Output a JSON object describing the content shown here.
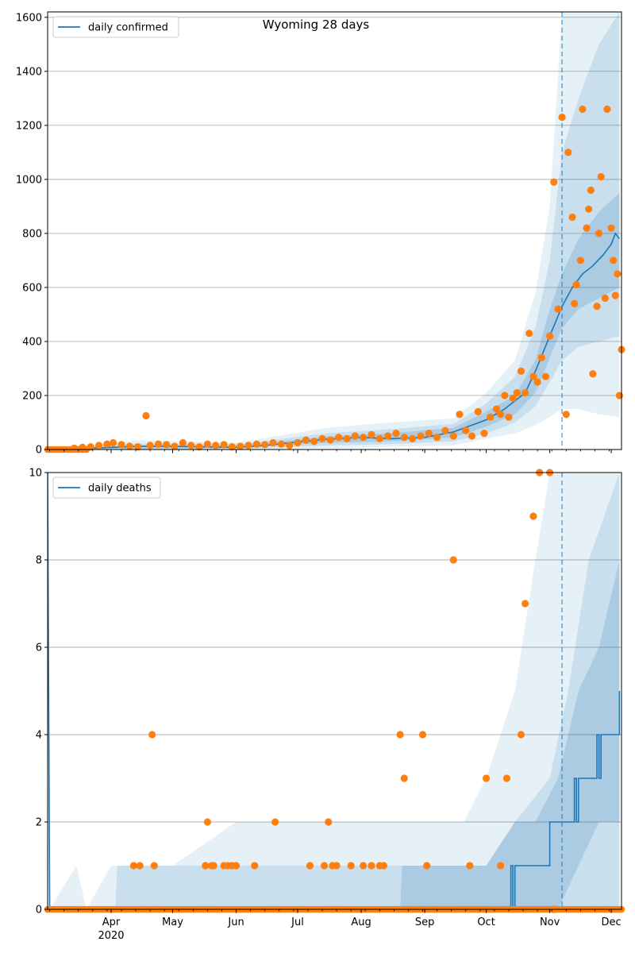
{
  "title": "Wyoming 28 days",
  "colors": {
    "line": "#1f77b4",
    "band": "#1f77b4",
    "points": "#ff7f0e",
    "grid": "#b0b0b0"
  },
  "chart_data": [
    {
      "type": "line",
      "title": "Wyoming 28 days",
      "legend": {
        "label": "daily confirmed",
        "placement": "top-left"
      },
      "ylim": [
        0,
        1620
      ],
      "yticks": [
        0,
        200,
        400,
        600,
        800,
        1000,
        1200,
        1400,
        1600
      ],
      "grid": "y",
      "forecast_start": "2020-11-07",
      "line": {
        "name": "daily confirmed",
        "x": [
          "2020-03-01",
          "2020-03-15",
          "2020-04-01",
          "2020-04-15",
          "2020-05-01",
          "2020-05-15",
          "2020-06-01",
          "2020-06-15",
          "2020-07-01",
          "2020-07-15",
          "2020-08-01",
          "2020-08-15",
          "2020-09-01",
          "2020-09-15",
          "2020-10-01",
          "2020-10-10",
          "2020-10-20",
          "2020-10-25",
          "2020-11-01",
          "2020-11-07",
          "2020-11-12",
          "2020-11-17",
          "2020-11-22",
          "2020-11-27",
          "2020-12-01",
          "2020-12-03",
          "2020-12-05"
        ],
        "y": [
          0,
          3,
          8,
          12,
          12,
          10,
          8,
          15,
          28,
          38,
          45,
          40,
          45,
          65,
          110,
          150,
          210,
          290,
          420,
          530,
          600,
          650,
          680,
          720,
          760,
          800,
          780
        ]
      },
      "bands": [
        {
          "x": [
            "2020-03-01",
            "2020-04-15",
            "2020-06-01",
            "2020-07-15",
            "2020-08-15",
            "2020-09-15",
            "2020-10-01",
            "2020-10-15",
            "2020-10-25",
            "2020-11-01",
            "2020-11-07",
            "2020-11-15",
            "2020-11-25",
            "2020-12-05"
          ],
          "lower": [
            0,
            0,
            0,
            5,
            10,
            15,
            40,
            60,
            90,
            120,
            150,
            150,
            130,
            120
          ],
          "upper": [
            0,
            35,
            25,
            80,
            100,
            115,
            210,
            330,
            580,
            900,
            1650,
            1650,
            1650,
            1650
          ]
        },
        {
          "x": [
            "2020-03-01",
            "2020-04-15",
            "2020-06-01",
            "2020-07-15",
            "2020-08-15",
            "2020-09-15",
            "2020-10-01",
            "2020-10-15",
            "2020-10-25",
            "2020-11-01",
            "2020-11-07",
            "2020-11-15",
            "2020-11-25",
            "2020-12-05"
          ],
          "lower": [
            0,
            0,
            2,
            15,
            20,
            30,
            60,
            100,
            160,
            250,
            330,
            380,
            400,
            420
          ],
          "upper": [
            0,
            22,
            18,
            60,
            75,
            95,
            170,
            270,
            450,
            700,
            1100,
            1300,
            1500,
            1650
          ]
        },
        {
          "x": [
            "2020-03-01",
            "2020-04-15",
            "2020-06-01",
            "2020-07-15",
            "2020-08-15",
            "2020-09-15",
            "2020-10-01",
            "2020-10-15",
            "2020-10-25",
            "2020-11-01",
            "2020-11-07",
            "2020-11-15",
            "2020-11-25",
            "2020-12-05"
          ],
          "lower": [
            0,
            4,
            5,
            25,
            30,
            45,
            85,
            130,
            210,
            340,
            450,
            520,
            560,
            600
          ],
          "upper": [
            0,
            16,
            12,
            48,
            60,
            80,
            140,
            200,
            330,
            520,
            650,
            780,
            880,
            950
          ]
        }
      ],
      "points": {
        "name": "observed",
        "x": [
          "2020-03-14",
          "2020-03-18",
          "2020-03-22",
          "2020-03-26",
          "2020-03-30",
          "2020-04-02",
          "2020-04-06",
          "2020-04-10",
          "2020-04-14",
          "2020-04-18",
          "2020-04-20",
          "2020-04-24",
          "2020-04-28",
          "2020-05-02",
          "2020-05-06",
          "2020-05-10",
          "2020-05-14",
          "2020-05-18",
          "2020-05-22",
          "2020-05-26",
          "2020-05-30",
          "2020-06-03",
          "2020-06-07",
          "2020-06-11",
          "2020-06-15",
          "2020-06-19",
          "2020-06-23",
          "2020-06-27",
          "2020-07-01",
          "2020-07-05",
          "2020-07-09",
          "2020-07-13",
          "2020-07-17",
          "2020-07-21",
          "2020-07-25",
          "2020-07-29",
          "2020-08-02",
          "2020-08-06",
          "2020-08-10",
          "2020-08-14",
          "2020-08-18",
          "2020-08-22",
          "2020-08-26",
          "2020-08-30",
          "2020-09-03",
          "2020-09-07",
          "2020-09-11",
          "2020-09-15",
          "2020-09-18",
          "2020-09-21",
          "2020-09-24",
          "2020-09-27",
          "2020-09-30",
          "2020-10-03",
          "2020-10-06",
          "2020-10-08",
          "2020-10-10",
          "2020-10-12",
          "2020-10-14",
          "2020-10-16",
          "2020-10-18",
          "2020-10-20",
          "2020-10-22",
          "2020-10-24",
          "2020-10-26",
          "2020-10-28",
          "2020-10-30",
          "2020-11-01",
          "2020-11-03",
          "2020-11-05",
          "2020-11-07",
          "2020-11-09",
          "2020-11-10",
          "2020-11-12",
          "2020-11-13",
          "2020-11-14",
          "2020-11-16",
          "2020-11-17",
          "2020-11-19",
          "2020-11-20",
          "2020-11-21",
          "2020-11-22",
          "2020-11-24",
          "2020-11-25",
          "2020-11-26",
          "2020-11-28",
          "2020-11-29",
          "2020-12-01",
          "2020-12-02",
          "2020-12-03",
          "2020-12-04",
          "2020-12-05",
          "2020-12-06"
        ],
        "y": [
          5,
          8,
          10,
          15,
          20,
          25,
          18,
          12,
          10,
          125,
          15,
          20,
          18,
          12,
          25,
          15,
          10,
          20,
          15,
          18,
          10,
          12,
          15,
          20,
          18,
          25,
          20,
          15,
          25,
          35,
          30,
          40,
          35,
          45,
          40,
          50,
          45,
          55,
          40,
          50,
          60,
          45,
          40,
          50,
          60,
          45,
          70,
          50,
          130,
          70,
          50,
          140,
          60,
          120,
          150,
          130,
          200,
          120,
          190,
          210,
          290,
          210,
          430,
          270,
          250,
          340,
          270,
          420,
          990,
          520,
          1230,
          130,
          1100,
          860,
          540,
          610,
          700,
          1260,
          820,
          890,
          960,
          280,
          530,
          800,
          1010,
          560,
          1260,
          820,
          700,
          570,
          650,
          200,
          370
        ]
      }
    },
    {
      "type": "line",
      "legend": {
        "label": "daily deaths",
        "placement": "top-left"
      },
      "ylim": [
        0,
        10
      ],
      "yticks": [
        0,
        2,
        4,
        6,
        8,
        10
      ],
      "grid": "y",
      "forecast_start": "2020-11-07",
      "x_ticks": [
        {
          "date": "2020-04-01",
          "label": "Apr",
          "sublabel": "2020"
        },
        {
          "date": "2020-05-01",
          "label": "May"
        },
        {
          "date": "2020-06-01",
          "label": "Jun"
        },
        {
          "date": "2020-07-01",
          "label": "Jul"
        },
        {
          "date": "2020-08-01",
          "label": "Aug"
        },
        {
          "date": "2020-09-01",
          "label": "Sep"
        },
        {
          "date": "2020-10-01",
          "label": "Oct"
        },
        {
          "date": "2020-11-01",
          "label": "Nov"
        },
        {
          "date": "2020-12-01",
          "label": "Dec"
        }
      ],
      "line": {
        "name": "daily deaths",
        "x": [
          "2020-03-01",
          "2020-03-02",
          "2020-10-13",
          "2020-10-13",
          "2020-10-14",
          "2020-10-14",
          "2020-10-15",
          "2020-10-15",
          "2020-10-16",
          "2020-11-01",
          "2020-11-01",
          "2020-11-13",
          "2020-11-13",
          "2020-11-14",
          "2020-11-14",
          "2020-11-15",
          "2020-11-15",
          "2020-11-24",
          "2020-11-24",
          "2020-11-25",
          "2020-11-25",
          "2020-11-26",
          "2020-11-26",
          "2020-11-27",
          "2020-11-27",
          "2020-12-05",
          "2020-12-05"
        ],
        "y": [
          10,
          0,
          0,
          1,
          1,
          0,
          0,
          1,
          1,
          1,
          2,
          2,
          3,
          3,
          2,
          2,
          3,
          3,
          4,
          4,
          3,
          3,
          4,
          4,
          4,
          4,
          5
        ]
      },
      "bands": [
        {
          "x": [
            "2020-03-01",
            "2020-03-02",
            "2020-03-15",
            "2020-03-20",
            "2020-04-01",
            "2020-05-01",
            "2020-06-01",
            "2020-07-01",
            "2020-08-01",
            "2020-09-01",
            "2020-09-20",
            "2020-10-01",
            "2020-10-15",
            "2020-10-25",
            "2020-11-01",
            "2020-11-07",
            "2020-12-05"
          ],
          "lower": [
            0,
            0,
            0,
            0,
            0,
            0,
            0,
            0,
            0,
            0,
            0,
            0,
            0,
            0,
            0,
            0,
            0
          ],
          "upper": [
            10,
            0,
            1,
            0,
            1,
            1,
            2,
            2,
            2,
            2,
            2,
            3,
            5,
            8,
            10,
            10,
            10
          ]
        },
        {
          "x": [
            "2020-03-01",
            "2020-04-03",
            "2020-04-04",
            "2020-08-15",
            "2020-08-16",
            "2020-10-01",
            "2020-10-15",
            "2020-11-01",
            "2020-11-10",
            "2020-11-20",
            "2020-12-05"
          ],
          "lower": [
            0,
            0,
            0,
            0,
            0,
            0,
            0,
            0,
            0,
            0,
            0
          ],
          "upper": [
            0,
            0,
            1,
            1,
            1,
            1,
            2,
            3,
            5,
            8,
            10
          ]
        },
        {
          "x": [
            "2020-03-01",
            "2020-08-20",
            "2020-08-21",
            "2020-10-01",
            "2020-10-15",
            "2020-10-25",
            "2020-11-05",
            "2020-11-15",
            "2020-11-25",
            "2020-12-05"
          ],
          "lower": [
            0,
            0,
            0,
            0,
            0,
            0,
            0,
            1,
            2,
            2
          ],
          "upper": [
            0,
            0,
            1,
            1,
            2,
            2,
            3,
            5,
            6,
            8
          ]
        }
      ],
      "points": {
        "name": "observed",
        "x": [
          "2020-04-12",
          "2020-04-15",
          "2020-04-21",
          "2020-04-22",
          "2020-05-17",
          "2020-05-18",
          "2020-05-20",
          "2020-05-21",
          "2020-05-26",
          "2020-05-28",
          "2020-05-30",
          "2020-06-01",
          "2020-06-10",
          "2020-06-20",
          "2020-07-07",
          "2020-07-14",
          "2020-07-16",
          "2020-07-18",
          "2020-07-20",
          "2020-07-27",
          "2020-08-02",
          "2020-08-06",
          "2020-08-10",
          "2020-08-12",
          "2020-08-20",
          "2020-08-22",
          "2020-08-31",
          "2020-09-02",
          "2020-09-15",
          "2020-09-23",
          "2020-10-01",
          "2020-10-08",
          "2020-10-11",
          "2020-10-18",
          "2020-10-20",
          "2020-10-24",
          "2020-10-27",
          "2020-11-01",
          "2020-11-03"
        ],
        "y": [
          1,
          1,
          4,
          1,
          1,
          2,
          1,
          1,
          1,
          1,
          1,
          1,
          1,
          2,
          1,
          1,
          2,
          1,
          1,
          1,
          1,
          1,
          1,
          1,
          4,
          3,
          4,
          1,
          8,
          1,
          3,
          1,
          3,
          4,
          7,
          9,
          10,
          10,
          0
        ],
        "note_zero_points": "plus many observed days at 0"
      }
    }
  ]
}
